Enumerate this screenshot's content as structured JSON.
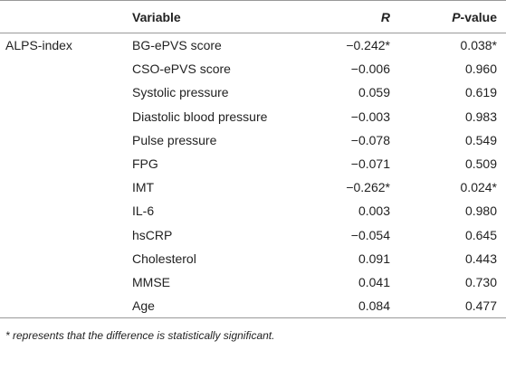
{
  "table": {
    "group": "ALPS-index",
    "header": [
      "Variable",
      "R",
      "P-value"
    ],
    "rows": [
      [
        "BG-ePVS score",
        "−0.242*",
        "0.038*"
      ],
      [
        "CSO-ePVS score",
        "−0.006",
        "0.960"
      ],
      [
        "Systolic pressure",
        "0.059",
        "0.619"
      ],
      [
        "Diastolic blood pressure",
        "−0.003",
        "0.983"
      ],
      [
        "Pulse pressure",
        "−0.078",
        "0.549"
      ],
      [
        "FPG",
        "−0.071",
        "0.509"
      ],
      [
        "IMT",
        "−0.262*",
        "0.024*"
      ],
      [
        "IL-6",
        "0.003",
        "0.980"
      ],
      [
        "hsCRP",
        "−0.054",
        "0.645"
      ],
      [
        "Cholesterol",
        "0.091",
        "0.443"
      ],
      [
        "MMSE",
        "0.041",
        "0.730"
      ],
      [
        "Age",
        "0.084",
        "0.477"
      ]
    ],
    "footnote": "* represents that the difference is statistically significant."
  }
}
